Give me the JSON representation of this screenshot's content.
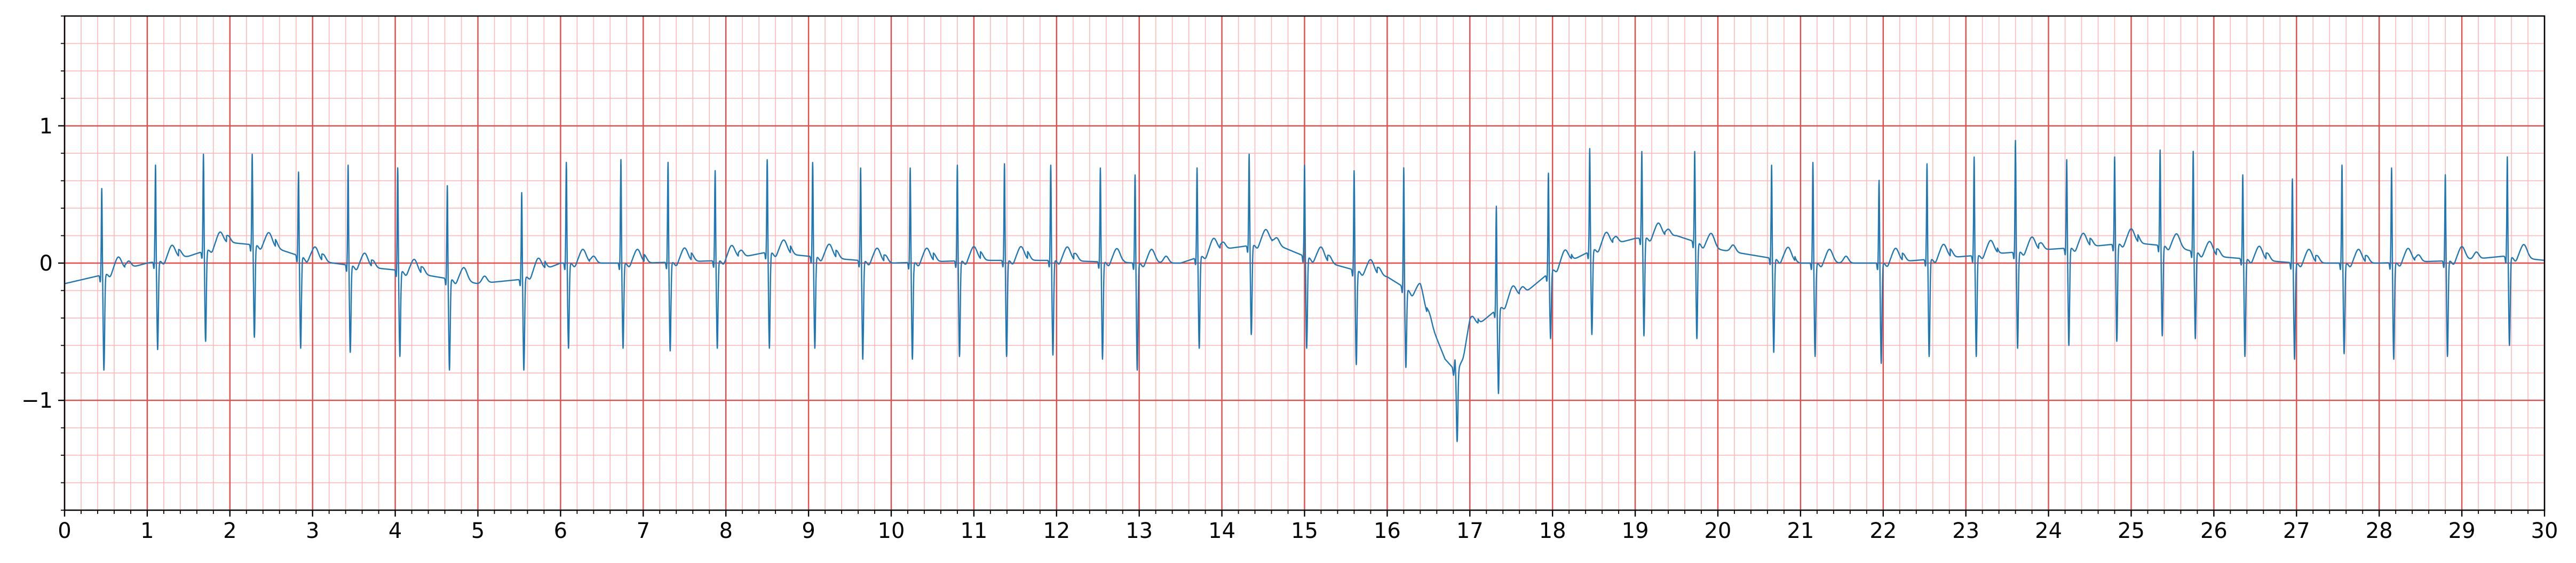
{
  "chart_data": {
    "type": "line",
    "title": "",
    "xlabel": "",
    "ylabel": "",
    "xlim": [
      0,
      30
    ],
    "ylim": [
      -1.8,
      1.8
    ],
    "x_ticks": [
      0,
      1,
      2,
      3,
      4,
      5,
      6,
      7,
      8,
      9,
      10,
      11,
      12,
      13,
      14,
      15,
      16,
      17,
      18,
      19,
      20,
      21,
      22,
      23,
      24,
      25,
      26,
      27,
      28,
      29,
      30
    ],
    "x_tick_labels": [
      "0",
      "1",
      "2",
      "3",
      "4",
      "5",
      "6",
      "7",
      "8",
      "9",
      "10",
      "11",
      "12",
      "13",
      "14",
      "15",
      "16",
      "17",
      "18",
      "19",
      "20",
      "21",
      "22",
      "23",
      "24",
      "25",
      "26",
      "27",
      "28",
      "29",
      "30"
    ],
    "y_ticks": [
      -1,
      0,
      1
    ],
    "y_tick_labels": [
      "−1",
      "0",
      "1"
    ],
    "grid": {
      "major_step_x": 1,
      "minor_step_x": 0.2,
      "major_step_y": 1,
      "minor_step_y": 0.2,
      "major_color": "#e84a4a",
      "minor_color": "#ffb8b8"
    },
    "series": [
      {
        "color": "#1f77b4",
        "baseline": [
          [
            0,
            -0.15
          ],
          [
            0.5,
            -0.08
          ],
          [
            1.0,
            0.0
          ],
          [
            1.5,
            0.05
          ],
          [
            2.0,
            0.15
          ],
          [
            2.5,
            0.12
          ],
          [
            3.0,
            0.02
          ],
          [
            3.5,
            -0.02
          ],
          [
            4.0,
            -0.05
          ],
          [
            4.5,
            -0.1
          ],
          [
            5.0,
            -0.15
          ],
          [
            5.5,
            -0.12
          ],
          [
            6.0,
            0.0
          ],
          [
            7.0,
            0.0
          ],
          [
            8.0,
            0.02
          ],
          [
            8.5,
            0.08
          ],
          [
            9.0,
            0.05
          ],
          [
            10.0,
            0.0
          ],
          [
            11.0,
            0.02
          ],
          [
            12.0,
            0.02
          ],
          [
            13.0,
            0.0
          ],
          [
            13.5,
            0.0
          ],
          [
            14.0,
            0.1
          ],
          [
            14.6,
            0.15
          ],
          [
            15.0,
            0.05
          ],
          [
            15.6,
            -0.05
          ],
          [
            16.0,
            -0.1
          ],
          [
            16.4,
            -0.25
          ],
          [
            16.7,
            -0.7
          ],
          [
            16.85,
            -0.8
          ],
          [
            17.0,
            -0.5
          ],
          [
            17.3,
            -0.35
          ],
          [
            17.7,
            -0.2
          ],
          [
            18.0,
            -0.05
          ],
          [
            18.5,
            0.1
          ],
          [
            19.0,
            0.18
          ],
          [
            19.5,
            0.2
          ],
          [
            20.0,
            0.1
          ],
          [
            20.5,
            0.05
          ],
          [
            21.0,
            0.0
          ],
          [
            22.0,
            0.0
          ],
          [
            23.0,
            0.05
          ],
          [
            24.0,
            0.1
          ],
          [
            24.5,
            0.12
          ],
          [
            25.0,
            0.15
          ],
          [
            25.5,
            0.12
          ],
          [
            26.0,
            0.05
          ],
          [
            27.0,
            0.0
          ],
          [
            28.0,
            0.0
          ],
          [
            29.0,
            0.02
          ],
          [
            29.5,
            0.05
          ],
          [
            30.0,
            0.02
          ]
        ],
        "beats": [
          {
            "t": 0.45,
            "r": 0.55,
            "s": -0.78
          },
          {
            "t": 1.1,
            "r": 0.72,
            "s": -0.63
          },
          {
            "t": 1.68,
            "r": 0.8,
            "s": -0.57
          },
          {
            "t": 2.27,
            "r": 0.8,
            "s": -0.54
          },
          {
            "t": 2.83,
            "r": 0.67,
            "s": -0.62
          },
          {
            "t": 3.43,
            "r": 0.72,
            "s": -0.65
          },
          {
            "t": 4.03,
            "r": 0.7,
            "s": -0.68
          },
          {
            "t": 4.63,
            "r": 0.57,
            "s": -0.78
          },
          {
            "t": 5.53,
            "r": 0.52,
            "s": -0.78
          },
          {
            "t": 6.07,
            "r": 0.74,
            "s": -0.62
          },
          {
            "t": 6.73,
            "r": 0.76,
            "s": -0.62
          },
          {
            "t": 7.3,
            "r": 0.74,
            "s": -0.64
          },
          {
            "t": 7.87,
            "r": 0.68,
            "s": -0.62
          },
          {
            "t": 8.5,
            "r": 0.76,
            "s": -0.62
          },
          {
            "t": 9.05,
            "r": 0.74,
            "s": -0.62
          },
          {
            "t": 9.63,
            "r": 0.7,
            "s": -0.7
          },
          {
            "t": 10.23,
            "r": 0.7,
            "s": -0.7
          },
          {
            "t": 10.8,
            "r": 0.72,
            "s": -0.68
          },
          {
            "t": 11.37,
            "r": 0.73,
            "s": -0.68
          },
          {
            "t": 11.93,
            "r": 0.72,
            "s": -0.67
          },
          {
            "t": 12.53,
            "r": 0.7,
            "s": -0.7
          },
          {
            "t": 12.95,
            "r": 0.65,
            "s": -0.78
          },
          {
            "t": 13.7,
            "r": 0.7,
            "s": -0.62
          },
          {
            "t": 14.33,
            "r": 0.8,
            "s": -0.52
          },
          {
            "t": 15.0,
            "r": 0.72,
            "s": -0.62
          },
          {
            "t": 15.6,
            "r": 0.68,
            "s": -0.74
          },
          {
            "t": 16.2,
            "r": 0.7,
            "s": -0.76
          },
          {
            "t": 16.82,
            "r": -0.7,
            "s": -1.3
          },
          {
            "t": 17.32,
            "r": 0.42,
            "s": -0.95
          },
          {
            "t": 17.95,
            "r": 0.66,
            "s": -0.55
          },
          {
            "t": 18.45,
            "r": 0.84,
            "s": -0.52
          },
          {
            "t": 19.08,
            "r": 0.82,
            "s": -0.53
          },
          {
            "t": 19.72,
            "r": 0.82,
            "s": -0.55
          },
          {
            "t": 20.65,
            "r": 0.72,
            "s": -0.65
          },
          {
            "t": 21.15,
            "r": 0.74,
            "s": -0.68
          },
          {
            "t": 21.95,
            "r": 0.61,
            "s": -0.73
          },
          {
            "t": 22.53,
            "r": 0.73,
            "s": -0.68
          },
          {
            "t": 23.1,
            "r": 0.78,
            "s": -0.68
          },
          {
            "t": 23.6,
            "r": 0.9,
            "s": -0.62
          },
          {
            "t": 24.22,
            "r": 0.76,
            "s": -0.6
          },
          {
            "t": 24.8,
            "r": 0.78,
            "s": -0.57
          },
          {
            "t": 25.35,
            "r": 0.83,
            "s": -0.53
          },
          {
            "t": 25.75,
            "r": 0.82,
            "s": -0.55
          },
          {
            "t": 26.35,
            "r": 0.65,
            "s": -0.68
          },
          {
            "t": 26.95,
            "r": 0.62,
            "s": -0.7
          },
          {
            "t": 27.55,
            "r": 0.72,
            "s": -0.66
          },
          {
            "t": 28.15,
            "r": 0.7,
            "s": -0.7
          },
          {
            "t": 28.8,
            "r": 0.65,
            "s": -0.68
          },
          {
            "t": 29.55,
            "r": 0.78,
            "s": -0.6
          }
        ]
      }
    ]
  }
}
